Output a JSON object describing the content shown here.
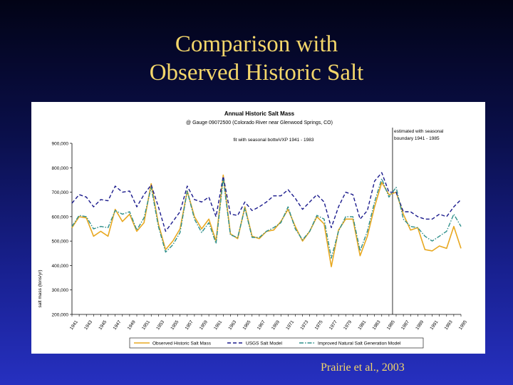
{
  "slide": {
    "title_line1": "Comparison with",
    "title_line2": "Observed Historic Salt",
    "citation": "Prairie et al., 2003"
  },
  "colors": {
    "background_top": "#020316",
    "background_bottom": "#2630c0",
    "title_text": "#f3d66a",
    "observed": "#e8a820",
    "usgs": "#1a1a8c",
    "improved": "#2e8f8a"
  },
  "chart_data": {
    "type": "line",
    "title": "Annual Historic Salt Mass",
    "subtitle": "@ Gauge 09072500 (Colorado River near Glenwood Springs, CO)",
    "annotation_left": "fit with seasonal bottwVXP 1941 - 1983",
    "annotation_right_line1": "estimated with seasonal",
    "annotation_right_line2": "boundary 1941 - 1985",
    "xlabel": "",
    "ylabel": "salt mass (tons/yr)",
    "ylim": [
      200000,
      900000
    ],
    "y_ticks": [
      "200,000",
      "300,000",
      "400,000",
      "500,000",
      "600,000",
      "700,000",
      "800,000",
      "900,000"
    ],
    "x": [
      1941,
      1942,
      1943,
      1944,
      1945,
      1946,
      1947,
      1948,
      1949,
      1950,
      1951,
      1952,
      1953,
      1954,
      1955,
      1956,
      1957,
      1958,
      1959,
      1960,
      1961,
      1962,
      1963,
      1964,
      1965,
      1966,
      1967,
      1968,
      1969,
      1970,
      1971,
      1972,
      1973,
      1974,
      1975,
      1976,
      1977,
      1978,
      1979,
      1980,
      1981,
      1982,
      1983,
      1984,
      1985,
      1986,
      1987,
      1988,
      1989,
      1990,
      1991,
      1992,
      1993,
      1994,
      1995
    ],
    "x_tick_labels": [
      "1941",
      "1943",
      "1945",
      "1947",
      "1949",
      "1951",
      "1953",
      "1955",
      "1957",
      "1959",
      "1961",
      "1963",
      "1965",
      "1967",
      "1969",
      "1971",
      "1973",
      "1975",
      "1977",
      "1979",
      "1981",
      "1983",
      "1985",
      "1987",
      "1989",
      "1991",
      "1993",
      "1995"
    ],
    "divider_year": 1985.5,
    "series": [
      {
        "name": "Observed Historic Salt Mass",
        "style": "solid",
        "values": [
          555000,
          600000,
          595000,
          520000,
          540000,
          520000,
          630000,
          580000,
          610000,
          540000,
          575000,
          735000,
          570000,
          465000,
          500000,
          550000,
          705000,
          600000,
          550000,
          590000,
          500000,
          770000,
          530000,
          510000,
          640000,
          520000,
          510000,
          540000,
          545000,
          580000,
          630000,
          560000,
          500000,
          540000,
          600000,
          570000,
          395000,
          545000,
          590000,
          590000,
          440000,
          520000,
          640000,
          740000,
          690000,
          700000,
          610000,
          545000,
          555000,
          465000,
          460000,
          480000,
          470000,
          560000,
          470000
        ]
      },
      {
        "name": "USGS Salt Model",
        "style": "dashed",
        "values": [
          655000,
          690000,
          680000,
          640000,
          670000,
          665000,
          725000,
          700000,
          705000,
          640000,
          690000,
          730000,
          640000,
          540000,
          580000,
          620000,
          725000,
          670000,
          660000,
          680000,
          600000,
          765000,
          610000,
          605000,
          660000,
          625000,
          640000,
          660000,
          685000,
          685000,
          710000,
          675000,
          630000,
          660000,
          690000,
          660000,
          555000,
          640000,
          700000,
          690000,
          590000,
          625000,
          745000,
          780000,
          700000,
          700000,
          620000,
          620000,
          600000,
          590000,
          590000,
          610000,
          600000,
          640000,
          670000
        ]
      },
      {
        "name": "Improved Natural Salt Generation Model",
        "style": "dashdot",
        "values": [
          560000,
          605000,
          600000,
          550000,
          560000,
          555000,
          625000,
          610000,
          620000,
          545000,
          595000,
          720000,
          560000,
          455000,
          485000,
          535000,
          705000,
          590000,
          535000,
          575000,
          490000,
          755000,
          525000,
          515000,
          635000,
          515000,
          515000,
          540000,
          555000,
          575000,
          640000,
          550000,
          505000,
          540000,
          605000,
          590000,
          430000,
          540000,
          600000,
          600000,
          460000,
          540000,
          660000,
          755000,
          680000,
          720000,
          590000,
          560000,
          555000,
          520000,
          500000,
          520000,
          540000,
          610000,
          560000
        ]
      }
    ],
    "legend": {
      "placement": "bottom",
      "labels": [
        "Observed Historic Salt Mass",
        "USGS Salt Model",
        "Improved Natural Salt Generation Model"
      ]
    },
    "grid": false
  }
}
